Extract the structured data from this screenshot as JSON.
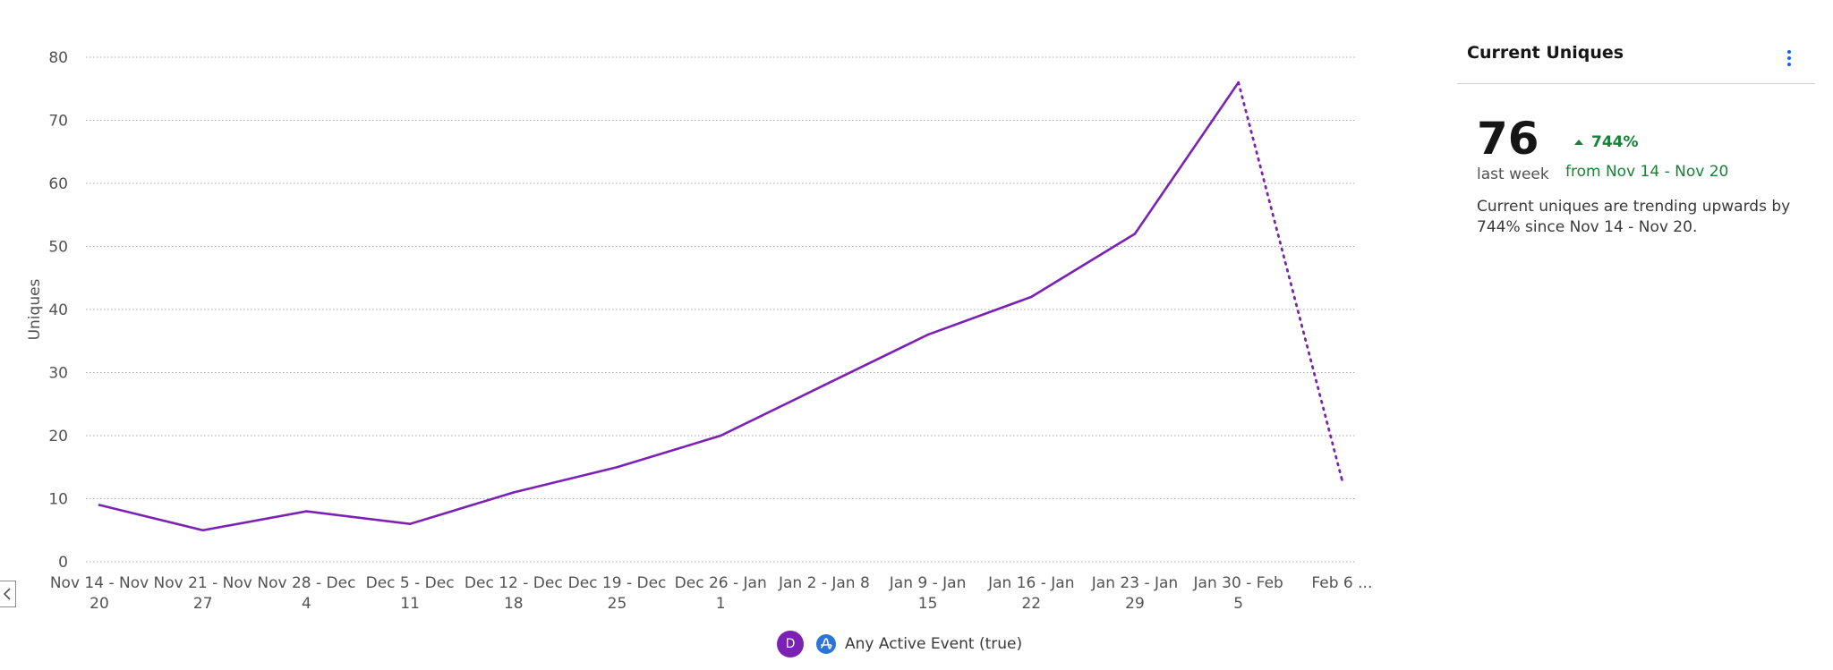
{
  "chart_data": {
    "type": "line",
    "ylabel": "Uniques",
    "ylim": [
      0,
      80
    ],
    "yticks": [
      0,
      10,
      20,
      30,
      40,
      50,
      60,
      70,
      80
    ],
    "grid": true,
    "categories": [
      [
        "Nov 14 - Nov",
        "20"
      ],
      [
        "Nov 21 - Nov",
        "27"
      ],
      [
        "Nov 28 - Dec",
        "4"
      ],
      [
        "Dec 5 - Dec",
        "11"
      ],
      [
        "Dec 12 - Dec",
        "18"
      ],
      [
        "Dec 19 - Dec",
        "25"
      ],
      [
        "Dec 26 - Jan",
        "1"
      ],
      [
        "Jan 2 - Jan 8",
        ""
      ],
      [
        "Jan 9 - Jan",
        "15"
      ],
      [
        "Jan 16 - Jan",
        "22"
      ],
      [
        "Jan 23 - Jan",
        "29"
      ],
      [
        "Jan 30 - Feb",
        "5"
      ],
      [
        "Feb 6 ...",
        ""
      ]
    ],
    "series": [
      {
        "values": [
          9,
          5,
          8,
          6,
          11,
          15,
          20,
          28,
          36,
          42,
          52,
          76,
          13
        ],
        "color": "#7b22b5",
        "incomplete_last_point": true
      }
    ],
    "legend": "bottom-center"
  },
  "legend": {
    "badge_letter": "D",
    "event_icon": "amplitude-icon",
    "label": "Any Active Event (true)"
  },
  "panel": {
    "title": "Current Uniques",
    "menu_icon": "more-vertical-icon",
    "value": "76",
    "period": "last week",
    "change_icon": "caret-up-icon",
    "change": "744%",
    "change_from": "from Nov 14 - Nov 20",
    "summary": "Current uniques are trending upwards by 744% since Nov 14 - Nov 20.",
    "positive_color": "#198038"
  },
  "collapse_icon": "chevron-left-icon"
}
